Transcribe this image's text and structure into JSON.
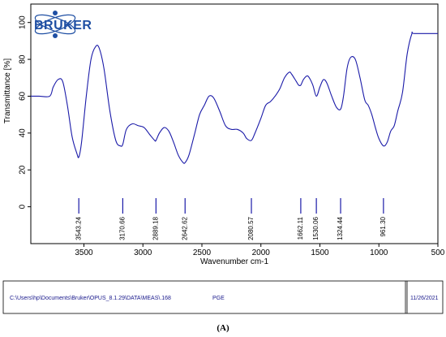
{
  "logo": {
    "text": "BRUKER",
    "color": "#1f4fa3"
  },
  "chart_data": {
    "type": "line",
    "xlabel": "Wavenumber cm-1",
    "ylabel": "Transmittance [%]",
    "xlim": [
      3950,
      500
    ],
    "ylim": [
      -20,
      110
    ],
    "x_ticks": [
      3500,
      3000,
      2500,
      2000,
      1500,
      1000,
      500
    ],
    "y_ticks": [
      0,
      20,
      40,
      60,
      80,
      100
    ],
    "grid": false,
    "line_color": "#1a1aa8",
    "series": [
      {
        "x": [
          3950,
          3880,
          3790,
          3760,
          3720,
          3680,
          3640,
          3600,
          3560,
          3543,
          3520,
          3480,
          3440,
          3400,
          3370,
          3330,
          3280,
          3230,
          3190,
          3170,
          3140,
          3090,
          3040,
          2990,
          2940,
          2900,
          2889,
          2860,
          2820,
          2780,
          2740,
          2700,
          2660,
          2642,
          2610,
          2560,
          2520,
          2480,
          2440,
          2400,
          2350,
          2300,
          2250,
          2200,
          2150,
          2120,
          2081,
          2050,
          2000,
          1960,
          1920,
          1880,
          1840,
          1800,
          1760,
          1740,
          1700,
          1680,
          1662,
          1640,
          1610,
          1590,
          1560,
          1530,
          1500,
          1470,
          1440,
          1400,
          1360,
          1324,
          1300,
          1270,
          1240,
          1200,
          1160,
          1120,
          1090,
          1060,
          1030,
          1000,
          961,
          930,
          900,
          870,
          840,
          800,
          760,
          720,
          700,
          500
        ],
        "y": [
          60,
          60,
          60,
          65,
          69,
          68,
          55,
          38,
          29,
          27,
          35,
          60,
          80,
          87,
          86,
          75,
          52,
          36,
          33,
          34,
          42,
          45,
          44,
          43,
          39,
          36,
          36,
          40,
          43,
          41,
          35,
          28,
          24,
          24,
          28,
          40,
          50,
          55,
          60,
          59,
          52,
          44,
          42,
          42,
          40,
          37,
          36,
          40,
          48,
          55,
          57,
          60,
          64,
          70,
          73,
          72,
          68,
          66,
          66,
          69,
          71,
          70,
          66,
          60,
          65,
          69,
          67,
          60,
          54,
          53,
          60,
          75,
          81,
          80,
          70,
          58,
          55,
          50,
          43,
          37,
          33,
          35,
          41,
          44,
          52,
          62,
          83,
          94,
          94,
          94
        ]
      }
    ],
    "peaks": [
      {
        "x": 3543.24,
        "label": "3543.24"
      },
      {
        "x": 3170.66,
        "label": "3170.66"
      },
      {
        "x": 2889.18,
        "label": "2889.18"
      },
      {
        "x": 2642.62,
        "label": "2642.62"
      },
      {
        "x": 2080.57,
        "label": "2080.57"
      },
      {
        "x": 1662.11,
        "label": "1662.11"
      },
      {
        "x": 1530.06,
        "label": "1530.06"
      },
      {
        "x": 1324.44,
        "label": "1324.44"
      },
      {
        "x": 961.3,
        "label": "961.30"
      }
    ]
  },
  "footer": {
    "path": "C:\\Users\\hp\\Documents\\Bruker\\OPUS_8.1.29\\DATA\\MEAS\\.168",
    "sample": "PGE",
    "date": "11/26/2021"
  },
  "caption": "(A)"
}
